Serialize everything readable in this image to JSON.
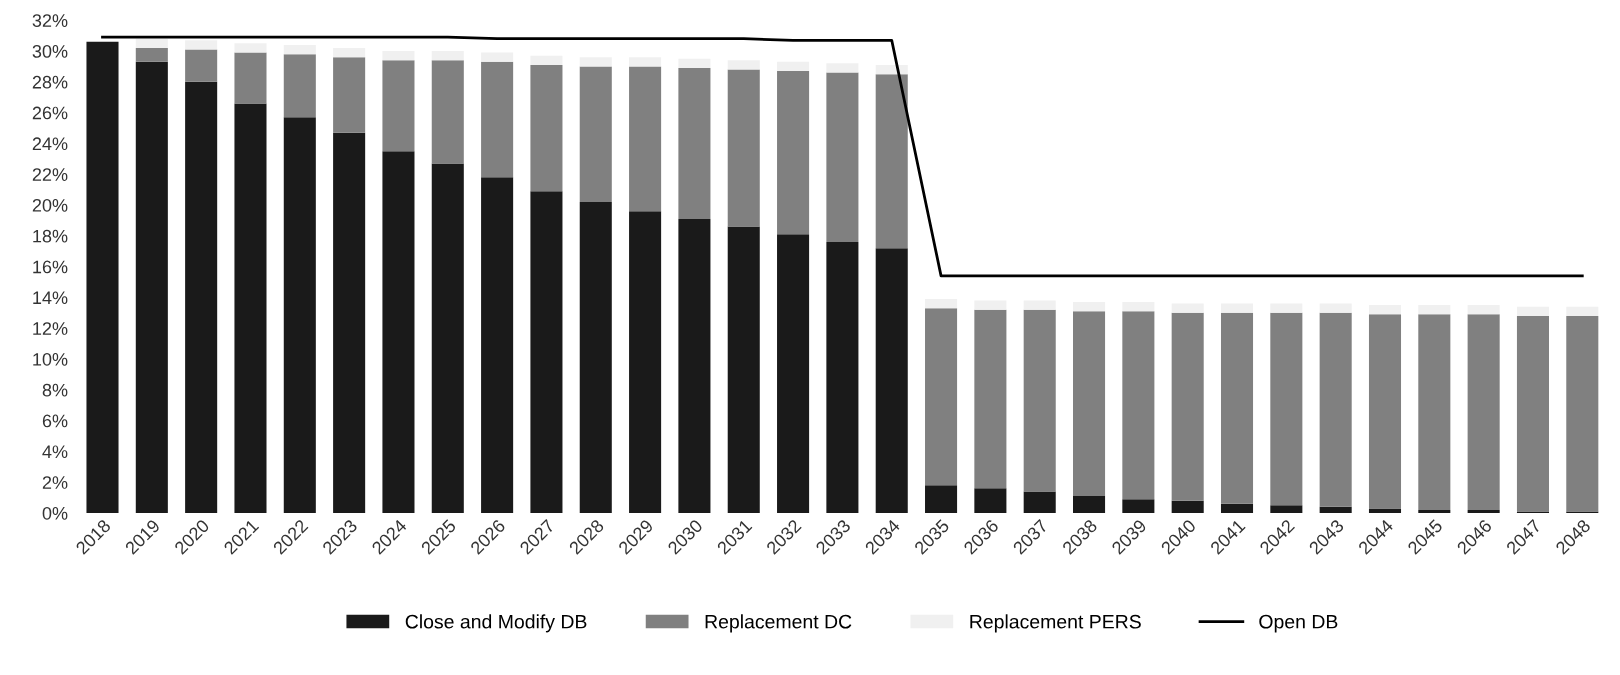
{
  "chart_data": {
    "type": "bar",
    "stacked": true,
    "categories": [
      "2018",
      "2019",
      "2020",
      "2021",
      "2022",
      "2023",
      "2024",
      "2025",
      "2026",
      "2027",
      "2028",
      "2029",
      "2030",
      "2031",
      "2032",
      "2033",
      "2034",
      "2035",
      "2036",
      "2037",
      "2038",
      "2039",
      "2040",
      "2041",
      "2042",
      "2043",
      "2044",
      "2045",
      "2046",
      "2047",
      "2048"
    ],
    "series": [
      {
        "name": "Close and Modify DB",
        "color": "#1a1a1a",
        "values": [
          30.6,
          29.3,
          28.0,
          26.6,
          25.7,
          24.7,
          23.5,
          22.7,
          21.8,
          20.9,
          20.2,
          19.6,
          19.1,
          18.6,
          18.1,
          17.6,
          17.2,
          1.8,
          1.6,
          1.4,
          1.1,
          0.9,
          0.8,
          0.6,
          0.5,
          0.4,
          0.3,
          0.2,
          0.2,
          0.1,
          0.1
        ]
      },
      {
        "name": "Replacement DC",
        "color": "#808080",
        "values": [
          null,
          0.9,
          2.1,
          3.3,
          4.1,
          4.9,
          5.9,
          6.7,
          7.5,
          8.2,
          8.8,
          9.4,
          9.8,
          10.2,
          10.6,
          11.0,
          11.3,
          11.5,
          11.6,
          11.8,
          12.0,
          12.2,
          12.2,
          12.4,
          12.5,
          12.6,
          12.6,
          12.7,
          12.7,
          12.7,
          12.7
        ]
      },
      {
        "name": "Replacement PERS",
        "color": "#f0f0f0",
        "values": [
          null,
          0.6,
          0.6,
          0.6,
          0.6,
          0.6,
          0.6,
          0.6,
          0.6,
          0.6,
          0.6,
          0.6,
          0.6,
          0.6,
          0.6,
          0.6,
          0.6,
          0.6,
          0.6,
          0.6,
          0.6,
          0.6,
          0.6,
          0.6,
          0.6,
          0.6,
          0.6,
          0.6,
          0.6,
          0.6,
          0.6
        ]
      },
      {
        "name": "Open DB",
        "type": "line",
        "color": "#000000",
        "values": [
          30.9,
          30.9,
          30.9,
          30.9,
          30.9,
          30.9,
          30.9,
          30.9,
          30.8,
          30.8,
          30.8,
          30.8,
          30.8,
          30.8,
          30.7,
          30.7,
          30.7,
          15.4,
          15.4,
          15.4,
          15.4,
          15.4,
          15.4,
          15.4,
          15.4,
          15.4,
          15.4,
          15.4,
          15.4,
          15.4,
          15.4
        ]
      }
    ],
    "ylim": [
      0,
      32
    ],
    "yticks": [
      {
        "value": 0,
        "label": "0%"
      },
      {
        "value": 2,
        "label": "2%"
      },
      {
        "value": 4,
        "label": "4%"
      },
      {
        "value": 6,
        "label": "6%"
      },
      {
        "value": 8,
        "label": "8%"
      },
      {
        "value": 10,
        "label": "10%"
      },
      {
        "value": 12,
        "label": "12%"
      },
      {
        "value": 14,
        "label": "14%"
      },
      {
        "value": 16,
        "label": "16%"
      },
      {
        "value": 18,
        "label": "18%"
      },
      {
        "value": 20,
        "label": "20%"
      },
      {
        "value": 22,
        "label": "22%"
      },
      {
        "value": 24,
        "label": "24%"
      },
      {
        "value": 26,
        "label": "26%"
      },
      {
        "value": 28,
        "label": "28%"
      },
      {
        "value": 30,
        "label": "30%"
      },
      {
        "value": 32,
        "label": "32%"
      }
    ],
    "grid": false,
    "legend": "bottom",
    "marker": "none",
    "line_style": "solid"
  }
}
